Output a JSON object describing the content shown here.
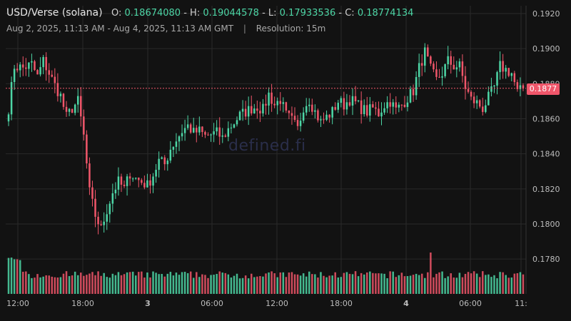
{
  "header": {
    "pair": "USD/Verse (solana)",
    "open_label": "O:",
    "open": "0.18674080",
    "high_label": "H:",
    "high": "0.19044578",
    "low_label": "L:",
    "low": "0.17933536",
    "close_label": "C:",
    "close": "0.18774134",
    "date_range": "Aug 2, 2025, 11:13 AM - Aug 4, 2025, 11:13 AM GMT",
    "separator": "|",
    "resolution": "Resolution: 15m"
  },
  "watermark": "defined.fi",
  "current_price_label": "0.1877",
  "colors": {
    "up": "#4dd6a6",
    "down": "#f0566a",
    "background": "#121212",
    "grid": "#2a2a2a"
  },
  "chart_data": {
    "type": "candlestick",
    "ylim": [
      0.177,
      0.1925
    ],
    "y_ticks": [
      "0.1920",
      "0.1900",
      "0.1880",
      "0.1860",
      "0.1840",
      "0.1820",
      "0.1800",
      "0.1780"
    ],
    "x_ticks": [
      "12:00",
      "18:00",
      "3",
      "06:00",
      "12:00",
      "18:00",
      "4",
      "06:00",
      "11:"
    ],
    "last_price": 0.18774,
    "grid": true,
    "close_path": [
      [
        0,
        0.1866
      ],
      [
        2,
        0.189
      ],
      [
        5,
        0.1889
      ],
      [
        8,
        0.1891
      ],
      [
        10,
        0.1884
      ],
      [
        12,
        0.1893
      ],
      [
        14,
        0.1886
      ],
      [
        16,
        0.1879
      ],
      [
        18,
        0.1873
      ],
      [
        20,
        0.1861
      ],
      [
        22,
        0.1866
      ],
      [
        24,
        0.187
      ],
      [
        26,
        0.185
      ],
      [
        28,
        0.1818
      ],
      [
        30,
        0.1805
      ],
      [
        32,
        0.1797
      ],
      [
        34,
        0.1808
      ],
      [
        36,
        0.1818
      ],
      [
        38,
        0.1824
      ],
      [
        40,
        0.182
      ],
      [
        42,
        0.1829
      ],
      [
        44,
        0.1826
      ],
      [
        46,
        0.1824
      ],
      [
        48,
        0.1822
      ],
      [
        50,
        0.1828
      ],
      [
        52,
        0.1836
      ],
      [
        54,
        0.1834
      ],
      [
        56,
        0.1843
      ],
      [
        58,
        0.1848
      ],
      [
        60,
        0.1853
      ],
      [
        62,
        0.1856
      ],
      [
        64,
        0.1852
      ],
      [
        66,
        0.1853
      ],
      [
        68,
        0.185
      ],
      [
        70,
        0.1851
      ],
      [
        72,
        0.1852
      ],
      [
        74,
        0.1849
      ],
      [
        76,
        0.1854
      ],
      [
        78,
        0.1858
      ],
      [
        80,
        0.1862
      ],
      [
        82,
        0.1864
      ],
      [
        84,
        0.1866
      ],
      [
        86,
        0.1867
      ],
      [
        88,
        0.1865
      ],
      [
        90,
        0.1874
      ],
      [
        92,
        0.1868
      ],
      [
        94,
        0.1871
      ],
      [
        96,
        0.1862
      ],
      [
        98,
        0.1859
      ],
      [
        100,
        0.1854
      ],
      [
        102,
        0.1867
      ],
      [
        104,
        0.1871
      ],
      [
        106,
        0.1864
      ],
      [
        108,
        0.1858
      ],
      [
        110,
        0.1861
      ],
      [
        112,
        0.1864
      ],
      [
        114,
        0.187
      ],
      [
        116,
        0.1868
      ],
      [
        118,
        0.1871
      ],
      [
        120,
        0.1869
      ],
      [
        122,
        0.1866
      ],
      [
        124,
        0.1864
      ],
      [
        126,
        0.1866
      ],
      [
        128,
        0.1863
      ],
      [
        130,
        0.1868
      ],
      [
        132,
        0.187
      ],
      [
        134,
        0.1865
      ],
      [
        136,
        0.1868
      ],
      [
        138,
        0.1872
      ],
      [
        140,
        0.1876
      ],
      [
        142,
        0.1889
      ],
      [
        144,
        0.1898
      ],
      [
        146,
        0.1888
      ],
      [
        148,
        0.1882
      ],
      [
        150,
        0.1886
      ],
      [
        152,
        0.1893
      ],
      [
        154,
        0.189
      ],
      [
        156,
        0.189
      ],
      [
        158,
        0.1878
      ],
      [
        160,
        0.1871
      ],
      [
        162,
        0.1869
      ],
      [
        164,
        0.1866
      ],
      [
        166,
        0.1872
      ],
      [
        168,
        0.1878
      ],
      [
        170,
        0.189
      ],
      [
        172,
        0.1888
      ],
      [
        174,
        0.1886
      ],
      [
        176,
        0.1875
      ],
      [
        178,
        0.1877
      ]
    ],
    "volume_levels": {
      "early": 0.9,
      "normal": 0.5,
      "spike": 1.0
    }
  }
}
